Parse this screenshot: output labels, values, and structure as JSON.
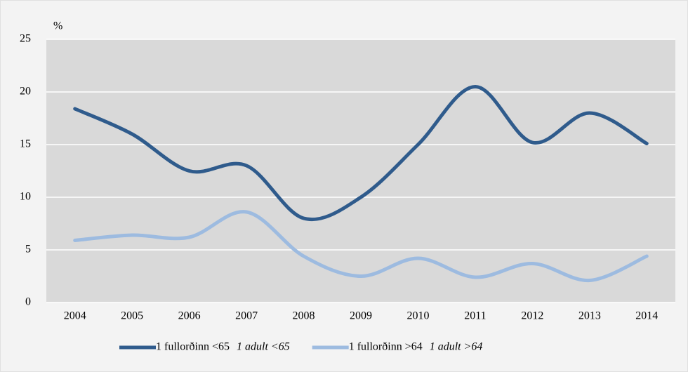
{
  "chart_data": {
    "type": "line",
    "ylabel": "%",
    "categories": [
      "2004",
      "2005",
      "2006",
      "2007",
      "2008",
      "2009",
      "2010",
      "2011",
      "2012",
      "2013",
      "2014"
    ],
    "series": [
      {
        "name": "1 fullorðinn <65",
        "name_en": "1 adult <65",
        "color": "#2f5b8c",
        "values": [
          18.4,
          16.0,
          12.5,
          13.0,
          8.0,
          10.0,
          15.0,
          20.5,
          15.2,
          18.0,
          15.1
        ]
      },
      {
        "name": "1 fullorðinn >64",
        "name_en": "1 adult >64",
        "color": "#9dbbe0",
        "values": [
          5.9,
          6.4,
          6.2,
          8.6,
          4.4,
          2.5,
          4.2,
          2.4,
          3.7,
          2.1,
          4.4
        ]
      }
    ],
    "ylim": [
      0,
      25
    ],
    "yticks": [
      0,
      5,
      10,
      15,
      20,
      25
    ],
    "grid": true,
    "smooth": true,
    "legend": "bottom"
  }
}
